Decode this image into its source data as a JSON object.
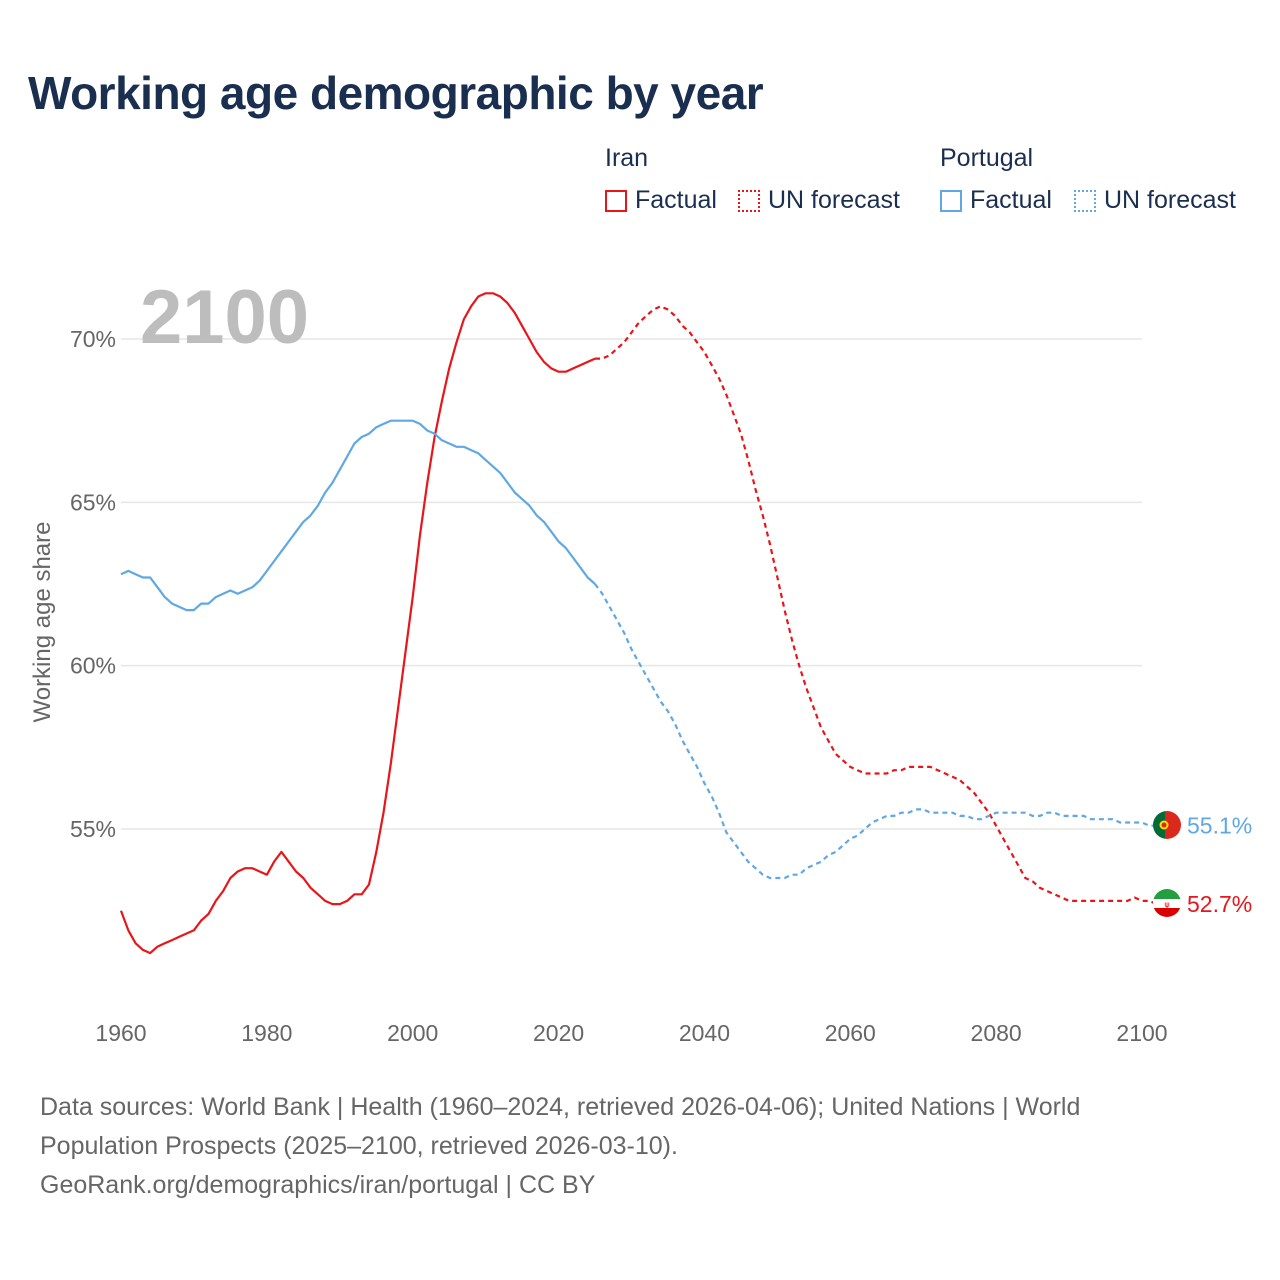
{
  "title": "Working age demographic by year",
  "legend": {
    "groups": [
      {
        "name": "Iran",
        "factual_label": "Factual",
        "forecast_label": "UN forecast",
        "color": "#e8151b"
      },
      {
        "name": "Portugal",
        "factual_label": "Factual",
        "forecast_label": "UN forecast",
        "color": "#5fa8e3"
      }
    ]
  },
  "year_badge": "2100",
  "footer": {
    "line1": "Data sources: World Bank | Health (1960–2024, retrieved 2026-04-06); United Nations | World",
    "line2": "Population Prospects (2025–2100, retrieved 2026-03-10).",
    "line3": "GeoRank.org/demographics/iran/portugal | CC BY"
  },
  "chart_data": {
    "type": "line",
    "title": "Working age demographic by year",
    "xlabel": "",
    "ylabel": "Working age share",
    "xlim": [
      1960,
      2100
    ],
    "ylim": [
      50,
      72
    ],
    "x_ticks": [
      1960,
      1980,
      2000,
      2020,
      2040,
      2060,
      2080,
      2100
    ],
    "x_tick_labels": [
      "1960",
      "1980",
      "2000",
      "2020",
      "2040",
      "2060",
      "2080",
      "2100"
    ],
    "y_ticks": [
      55,
      60,
      65,
      70
    ],
    "y_tick_labels": [
      "55%",
      "60%",
      "65%",
      "70%"
    ],
    "grid": true,
    "factual_end_year": 2025,
    "series": [
      {
        "name": "Iran",
        "color": "#e8151b",
        "end_label": "52.7%",
        "points": [
          [
            1960,
            52.5
          ],
          [
            1961,
            51.9
          ],
          [
            1962,
            51.5
          ],
          [
            1963,
            51.3
          ],
          [
            1964,
            51.2
          ],
          [
            1965,
            51.4
          ],
          [
            1966,
            51.5
          ],
          [
            1967,
            51.6
          ],
          [
            1968,
            51.7
          ],
          [
            1969,
            51.8
          ],
          [
            1970,
            51.9
          ],
          [
            1971,
            52.2
          ],
          [
            1972,
            52.4
          ],
          [
            1973,
            52.8
          ],
          [
            1974,
            53.1
          ],
          [
            1975,
            53.5
          ],
          [
            1976,
            53.7
          ],
          [
            1977,
            53.8
          ],
          [
            1978,
            53.8
          ],
          [
            1979,
            53.7
          ],
          [
            1980,
            53.6
          ],
          [
            1981,
            54.0
          ],
          [
            1982,
            54.3
          ],
          [
            1983,
            54.0
          ],
          [
            1984,
            53.7
          ],
          [
            1985,
            53.5
          ],
          [
            1986,
            53.2
          ],
          [
            1987,
            53.0
          ],
          [
            1988,
            52.8
          ],
          [
            1989,
            52.7
          ],
          [
            1990,
            52.7
          ],
          [
            1991,
            52.8
          ],
          [
            1992,
            53.0
          ],
          [
            1993,
            53.0
          ],
          [
            1994,
            53.3
          ],
          [
            1995,
            54.3
          ],
          [
            1996,
            55.5
          ],
          [
            1997,
            57.0
          ],
          [
            1998,
            58.7
          ],
          [
            1999,
            60.4
          ],
          [
            2000,
            62.1
          ],
          [
            2001,
            64.0
          ],
          [
            2002,
            65.6
          ],
          [
            2003,
            67.0
          ],
          [
            2004,
            68.1
          ],
          [
            2005,
            69.1
          ],
          [
            2006,
            69.9
          ],
          [
            2007,
            70.6
          ],
          [
            2008,
            71.0
          ],
          [
            2009,
            71.3
          ],
          [
            2010,
            71.4
          ],
          [
            2011,
            71.4
          ],
          [
            2012,
            71.3
          ],
          [
            2013,
            71.1
          ],
          [
            2014,
            70.8
          ],
          [
            2015,
            70.4
          ],
          [
            2016,
            70.0
          ],
          [
            2017,
            69.6
          ],
          [
            2018,
            69.3
          ],
          [
            2019,
            69.1
          ],
          [
            2020,
            69.0
          ],
          [
            2021,
            69.0
          ],
          [
            2022,
            69.1
          ],
          [
            2023,
            69.2
          ],
          [
            2024,
            69.3
          ],
          [
            2025,
            69.4
          ],
          [
            2026,
            69.4
          ],
          [
            2027,
            69.5
          ],
          [
            2028,
            69.7
          ],
          [
            2029,
            69.9
          ],
          [
            2030,
            70.2
          ],
          [
            2031,
            70.5
          ],
          [
            2032,
            70.7
          ],
          [
            2033,
            70.9
          ],
          [
            2034,
            71.0
          ],
          [
            2035,
            70.9
          ],
          [
            2036,
            70.7
          ],
          [
            2037,
            70.4
          ],
          [
            2038,
            70.2
          ],
          [
            2039,
            69.9
          ],
          [
            2040,
            69.6
          ],
          [
            2041,
            69.2
          ],
          [
            2042,
            68.8
          ],
          [
            2043,
            68.3
          ],
          [
            2044,
            67.7
          ],
          [
            2045,
            67.1
          ],
          [
            2046,
            66.3
          ],
          [
            2047,
            65.4
          ],
          [
            2048,
            64.6
          ],
          [
            2049,
            63.7
          ],
          [
            2050,
            62.7
          ],
          [
            2051,
            61.7
          ],
          [
            2052,
            60.8
          ],
          [
            2053,
            60.0
          ],
          [
            2054,
            59.3
          ],
          [
            2055,
            58.7
          ],
          [
            2056,
            58.1
          ],
          [
            2057,
            57.7
          ],
          [
            2058,
            57.3
          ],
          [
            2059,
            57.1
          ],
          [
            2060,
            56.9
          ],
          [
            2061,
            56.8
          ],
          [
            2062,
            56.7
          ],
          [
            2063,
            56.7
          ],
          [
            2064,
            56.7
          ],
          [
            2065,
            56.7
          ],
          [
            2066,
            56.8
          ],
          [
            2067,
            56.8
          ],
          [
            2068,
            56.9
          ],
          [
            2069,
            56.9
          ],
          [
            2070,
            56.9
          ],
          [
            2071,
            56.9
          ],
          [
            2072,
            56.8
          ],
          [
            2073,
            56.7
          ],
          [
            2074,
            56.6
          ],
          [
            2075,
            56.5
          ],
          [
            2076,
            56.3
          ],
          [
            2077,
            56.1
          ],
          [
            2078,
            55.8
          ],
          [
            2079,
            55.5
          ],
          [
            2080,
            55.1
          ],
          [
            2081,
            54.7
          ],
          [
            2082,
            54.3
          ],
          [
            2083,
            53.9
          ],
          [
            2084,
            53.5
          ],
          [
            2085,
            53.4
          ],
          [
            2086,
            53.2
          ],
          [
            2087,
            53.1
          ],
          [
            2088,
            53.0
          ],
          [
            2089,
            52.9
          ],
          [
            2090,
            52.8
          ],
          [
            2091,
            52.8
          ],
          [
            2092,
            52.8
          ],
          [
            2093,
            52.8
          ],
          [
            2094,
            52.8
          ],
          [
            2095,
            52.8
          ],
          [
            2096,
            52.8
          ],
          [
            2097,
            52.8
          ],
          [
            2098,
            52.8
          ],
          [
            2099,
            52.9
          ],
          [
            2100,
            52.8
          ],
          [
            2101,
            52.8
          ],
          [
            2102,
            52.7
          ]
        ]
      },
      {
        "name": "Portugal",
        "color": "#5fa8e3",
        "end_label": "55.1%",
        "points": [
          [
            1960,
            62.8
          ],
          [
            1961,
            62.9
          ],
          [
            1962,
            62.8
          ],
          [
            1963,
            62.7
          ],
          [
            1964,
            62.7
          ],
          [
            1965,
            62.4
          ],
          [
            1966,
            62.1
          ],
          [
            1967,
            61.9
          ],
          [
            1968,
            61.8
          ],
          [
            1969,
            61.7
          ],
          [
            1970,
            61.7
          ],
          [
            1971,
            61.9
          ],
          [
            1972,
            61.9
          ],
          [
            1973,
            62.1
          ],
          [
            1974,
            62.2
          ],
          [
            1975,
            62.3
          ],
          [
            1976,
            62.2
          ],
          [
            1977,
            62.3
          ],
          [
            1978,
            62.4
          ],
          [
            1979,
            62.6
          ],
          [
            1980,
            62.9
          ],
          [
            1981,
            63.2
          ],
          [
            1982,
            63.5
          ],
          [
            1983,
            63.8
          ],
          [
            1984,
            64.1
          ],
          [
            1985,
            64.4
          ],
          [
            1986,
            64.6
          ],
          [
            1987,
            64.9
          ],
          [
            1988,
            65.3
          ],
          [
            1989,
            65.6
          ],
          [
            1990,
            66.0
          ],
          [
            1991,
            66.4
          ],
          [
            1992,
            66.8
          ],
          [
            1993,
            67.0
          ],
          [
            1994,
            67.1
          ],
          [
            1995,
            67.3
          ],
          [
            1996,
            67.4
          ],
          [
            1997,
            67.5
          ],
          [
            1998,
            67.5
          ],
          [
            1999,
            67.5
          ],
          [
            2000,
            67.5
          ],
          [
            2001,
            67.4
          ],
          [
            2002,
            67.2
          ],
          [
            2003,
            67.1
          ],
          [
            2004,
            66.9
          ],
          [
            2005,
            66.8
          ],
          [
            2006,
            66.7
          ],
          [
            2007,
            66.7
          ],
          [
            2008,
            66.6
          ],
          [
            2009,
            66.5
          ],
          [
            2010,
            66.3
          ],
          [
            2011,
            66.1
          ],
          [
            2012,
            65.9
          ],
          [
            2013,
            65.6
          ],
          [
            2014,
            65.3
          ],
          [
            2015,
            65.1
          ],
          [
            2016,
            64.9
          ],
          [
            2017,
            64.6
          ],
          [
            2018,
            64.4
          ],
          [
            2019,
            64.1
          ],
          [
            2020,
            63.8
          ],
          [
            2021,
            63.6
          ],
          [
            2022,
            63.3
          ],
          [
            2023,
            63.0
          ],
          [
            2024,
            62.7
          ],
          [
            2025,
            62.5
          ],
          [
            2026,
            62.2
          ],
          [
            2027,
            61.8
          ],
          [
            2028,
            61.4
          ],
          [
            2029,
            61.0
          ],
          [
            2030,
            60.5
          ],
          [
            2031,
            60.1
          ],
          [
            2032,
            59.7
          ],
          [
            2033,
            59.3
          ],
          [
            2034,
            58.9
          ],
          [
            2035,
            58.6
          ],
          [
            2036,
            58.2
          ],
          [
            2037,
            57.7
          ],
          [
            2038,
            57.3
          ],
          [
            2039,
            56.9
          ],
          [
            2040,
            56.4
          ],
          [
            2041,
            56.0
          ],
          [
            2042,
            55.5
          ],
          [
            2043,
            54.9
          ],
          [
            2044,
            54.6
          ],
          [
            2045,
            54.3
          ],
          [
            2046,
            54.0
          ],
          [
            2047,
            53.8
          ],
          [
            2048,
            53.6
          ],
          [
            2049,
            53.5
          ],
          [
            2050,
            53.5
          ],
          [
            2051,
            53.5
          ],
          [
            2052,
            53.6
          ],
          [
            2053,
            53.6
          ],
          [
            2054,
            53.8
          ],
          [
            2055,
            53.9
          ],
          [
            2056,
            54.0
          ],
          [
            2057,
            54.2
          ],
          [
            2058,
            54.3
          ],
          [
            2059,
            54.5
          ],
          [
            2060,
            54.7
          ],
          [
            2061,
            54.8
          ],
          [
            2062,
            55.0
          ],
          [
            2063,
            55.2
          ],
          [
            2064,
            55.3
          ],
          [
            2065,
            55.4
          ],
          [
            2066,
            55.4
          ],
          [
            2067,
            55.5
          ],
          [
            2068,
            55.5
          ],
          [
            2069,
            55.6
          ],
          [
            2070,
            55.6
          ],
          [
            2071,
            55.5
          ],
          [
            2072,
            55.5
          ],
          [
            2073,
            55.5
          ],
          [
            2074,
            55.5
          ],
          [
            2075,
            55.4
          ],
          [
            2076,
            55.4
          ],
          [
            2077,
            55.3
          ],
          [
            2078,
            55.3
          ],
          [
            2079,
            55.4
          ],
          [
            2080,
            55.5
          ],
          [
            2081,
            55.5
          ],
          [
            2082,
            55.5
          ],
          [
            2083,
            55.5
          ],
          [
            2084,
            55.5
          ],
          [
            2085,
            55.4
          ],
          [
            2086,
            55.4
          ],
          [
            2087,
            55.5
          ],
          [
            2088,
            55.5
          ],
          [
            2089,
            55.4
          ],
          [
            2090,
            55.4
          ],
          [
            2091,
            55.4
          ],
          [
            2092,
            55.4
          ],
          [
            2093,
            55.3
          ],
          [
            2094,
            55.3
          ],
          [
            2095,
            55.3
          ],
          [
            2096,
            55.3
          ],
          [
            2097,
            55.2
          ],
          [
            2098,
            55.2
          ],
          [
            2099,
            55.2
          ],
          [
            2100,
            55.2
          ],
          [
            2101,
            55.1
          ],
          [
            2102,
            55.1
          ]
        ]
      }
    ]
  }
}
